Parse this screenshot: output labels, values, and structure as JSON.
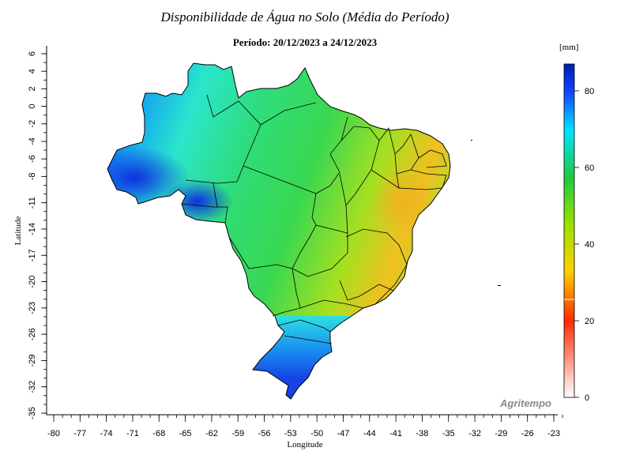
{
  "header": {
    "title": "Disponibilidade de Água no Solo (Média do Período)",
    "subtitle": "Período: 20/12/2023 a 24/12/2023"
  },
  "axes": {
    "x_label": "Longitude",
    "y_label": "Latitude",
    "x_ticks": [
      -80,
      -77,
      -74,
      -71,
      -68,
      -65,
      -62,
      -59,
      -56,
      -53,
      -50,
      -47,
      -44,
      -41,
      -38,
      -35,
      -32,
      -29,
      -26,
      -23
    ],
    "y_ticks": [
      6,
      4,
      2,
      0,
      -2,
      -4,
      -6,
      -8,
      -11,
      -14,
      -17,
      -20,
      -23,
      -26,
      -29,
      -32,
      -35
    ]
  },
  "legend": {
    "unit": "[mm]",
    "ticks": [
      0,
      20,
      40,
      60,
      80
    ],
    "range": [
      0,
      87
    ],
    "colors": [
      "#ffffff",
      "#ff2a00",
      "#ffd000",
      "#9be000",
      "#20c840",
      "#00e4ff",
      "#1040ff",
      "#0020b0"
    ]
  },
  "brand": "Agritempo",
  "map_colors": {
    "north_west": "#1338e8",
    "amazon": "#27e3c6",
    "center": "#2fd86f",
    "northeast": "#8fe020",
    "bahia_dry": "#f0c020",
    "south": "#1545e4"
  }
}
